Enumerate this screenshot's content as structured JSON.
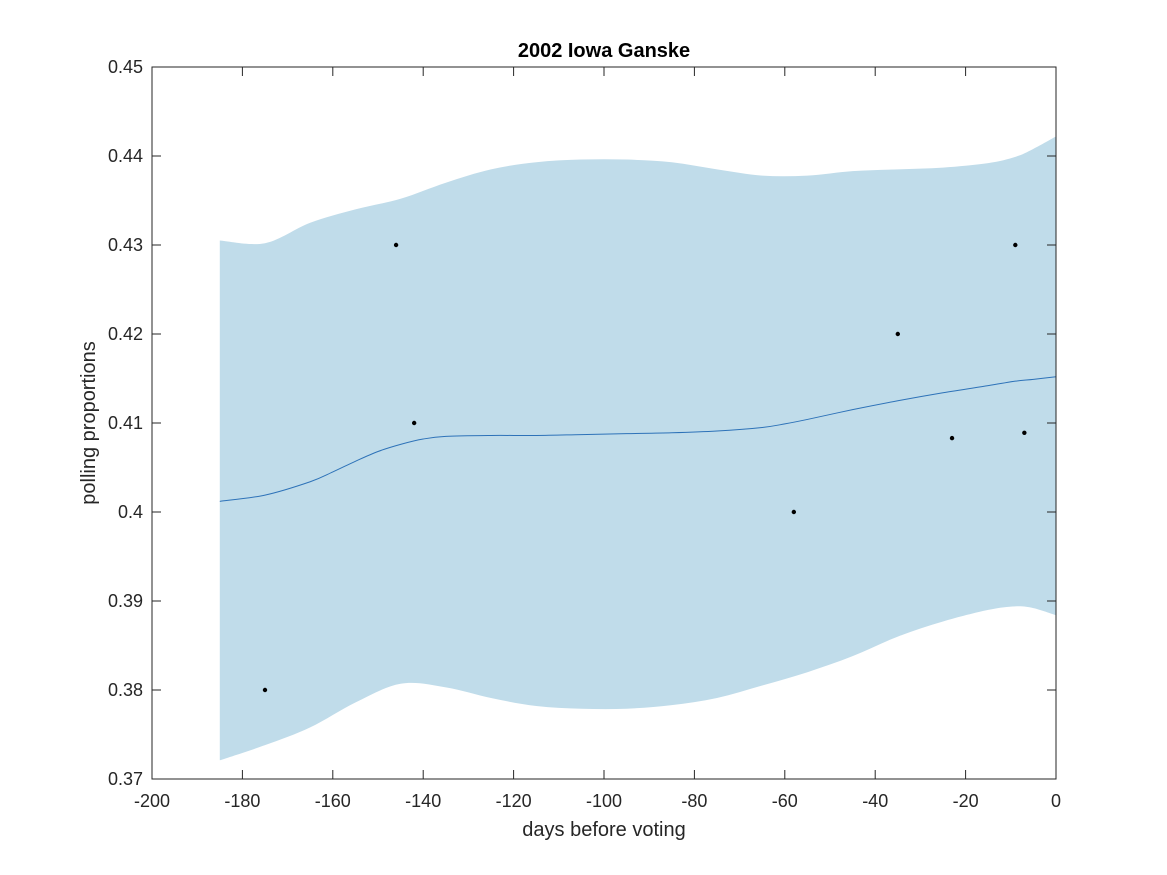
{
  "chart_data": {
    "type": "scatter",
    "title": "2002 Iowa Ganske",
    "xlabel": "days before voting",
    "ylabel": "polling proportions",
    "xlim": [
      -200,
      0
    ],
    "ylim": [
      0.37,
      0.45
    ],
    "grid": false,
    "legend": "none",
    "x_ticks": [
      -200,
      -180,
      -160,
      -140,
      -120,
      -100,
      -80,
      -60,
      -40,
      -20,
      0
    ],
    "y_ticks": [
      0.37,
      0.38,
      0.39,
      0.4,
      0.41,
      0.42,
      0.43,
      0.44,
      0.45
    ],
    "x_tick_labels": [
      "-200",
      "-180",
      "-160",
      "-140",
      "-120",
      "-100",
      "-80",
      "-60",
      "-40",
      "-20",
      "0"
    ],
    "y_tick_labels": [
      "0.37",
      "0.38",
      "0.39",
      "0.4",
      "0.41",
      "0.42",
      "0.43",
      "0.44",
      "0.45"
    ],
    "colors": {
      "band": "#c0dcea",
      "line": "#2d72b8",
      "points": "#000000",
      "axes": "#262626"
    },
    "series": [
      {
        "type": "area",
        "x": [
          -185,
          -175,
          -165,
          -155,
          -145,
          -135,
          -125,
          -115,
          -105,
          -95,
          -85,
          -75,
          -65,
          -55,
          -45,
          -35,
          -25,
          -15,
          -9,
          -5,
          0
        ],
        "upper": [
          0.4305,
          0.4302,
          0.4325,
          0.434,
          0.4352,
          0.437,
          0.4385,
          0.4393,
          0.4396,
          0.4396,
          0.4393,
          0.4385,
          0.4378,
          0.4378,
          0.4383,
          0.4385,
          0.4387,
          0.4392,
          0.4399,
          0.4408,
          0.4422
        ],
        "lower": [
          0.3721,
          0.3738,
          0.3758,
          0.3786,
          0.3807,
          0.3803,
          0.3791,
          0.3782,
          0.3779,
          0.3779,
          0.3783,
          0.3791,
          0.3805,
          0.382,
          0.3838,
          0.386,
          0.3877,
          0.389,
          0.3894,
          0.3892,
          0.3884
        ]
      },
      {
        "type": "line",
        "x": [
          -185,
          -175,
          -165,
          -160,
          -155,
          -150,
          -145,
          -140,
          -135,
          -125,
          -115,
          -105,
          -95,
          -85,
          -75,
          -65,
          -60,
          -55,
          -45,
          -35,
          -25,
          -15,
          -9,
          -5,
          0
        ],
        "y": [
          0.4012,
          0.4019,
          0.4034,
          0.4045,
          0.4057,
          0.4068,
          0.4076,
          0.4082,
          0.4085,
          0.4086,
          0.4086,
          0.4087,
          0.4088,
          0.4089,
          0.4091,
          0.4095,
          0.4099,
          0.4104,
          0.4115,
          0.4125,
          0.4134,
          0.4142,
          0.4147,
          0.4149,
          0.4152
        ]
      },
      {
        "type": "scatter",
        "x": [
          -175,
          -146,
          -142,
          -58,
          -35,
          -23,
          -9,
          -7
        ],
        "y": [
          0.38,
          0.43,
          0.41,
          0.4,
          0.42,
          0.4083,
          0.43,
          0.4089
        ]
      }
    ]
  }
}
